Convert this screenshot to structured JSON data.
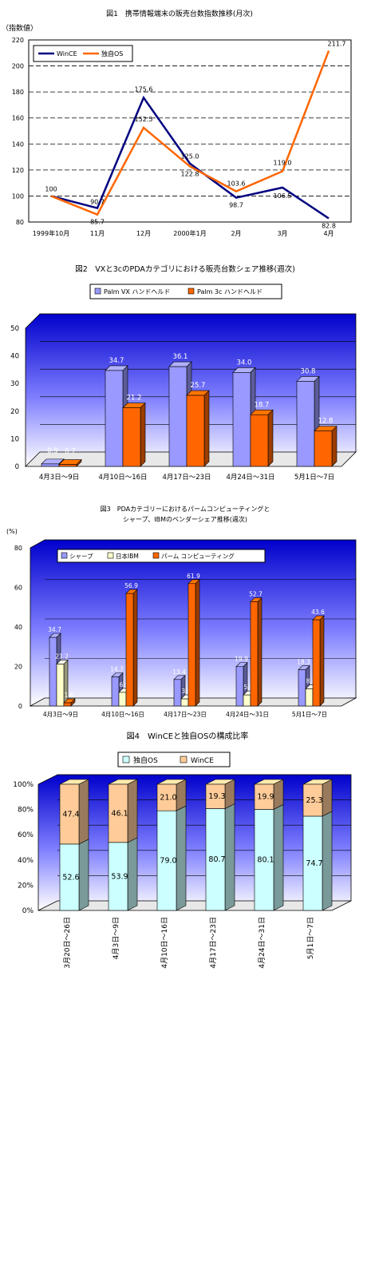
{
  "chart_data": [
    {
      "type": "line",
      "title": "図1　携帯情報端末の販売台数指数推移(月次)",
      "ylabel": "（指数値）",
      "categories": [
        "1999年10月",
        "11月",
        "12月",
        "2000年1月",
        "2月",
        "3月",
        "4月"
      ],
      "series": [
        {
          "name": "WinCE",
          "color": "#000080",
          "values": [
            100,
            90.7,
            175.6,
            125.0,
            98.7,
            106.5,
            82.8
          ]
        },
        {
          "name": "独自OS",
          "color": "#ff6600",
          "values": [
            100,
            85.7,
            152.5,
            122.8,
            103.6,
            119.0,
            211.7
          ]
        }
      ],
      "data_labels": [
        "100",
        "90.7",
        "175.6",
        "125.0",
        "98.7",
        "106.5",
        "82.8",
        "85.7",
        "152.5",
        "122.8",
        "103.6",
        "119.0",
        "211.7"
      ],
      "ylim": [
        80,
        220
      ],
      "yticks": [
        "80",
        "100",
        "120",
        "140",
        "160",
        "180",
        "200",
        "220"
      ],
      "grid": true,
      "legend": "top-left"
    },
    {
      "type": "bar",
      "title": "図2　VXと3cのPDAカテゴリにおける販売台数シェア推移(週次)",
      "categories": [
        "4月3日～9日",
        "4月10日～16日",
        "4月17日～23日",
        "4月24日～31日",
        "5月1日～7日"
      ],
      "series": [
        {
          "name": "Palm VX ハンドヘルド",
          "color": "#9999ff",
          "values": [
            0.9,
            34.7,
            36.1,
            34.0,
            30.8
          ]
        },
        {
          "name": "Palm 3c ハンドヘルド",
          "color": "#ff6600",
          "values": [
            0.7,
            21.2,
            25.7,
            18.7,
            12.8
          ]
        }
      ],
      "data_labels": [
        [
          "0.9",
          "34.7",
          "36.1",
          "34.0",
          "30.8"
        ],
        [
          "0.7",
          "21.2",
          "25.7",
          "18.7",
          "12.8"
        ]
      ],
      "ylim": [
        0,
        50
      ],
      "yticks": [
        "0",
        "10",
        "20",
        "30",
        "40",
        "50"
      ],
      "grid": true,
      "legend": "top"
    },
    {
      "type": "bar",
      "title": "図3　PDAカテゴリーにおけるパームコンピューティングと",
      "subtitle": "シャープ、IBMのベンダーシェア推移(週次)",
      "ylabel": "(%)",
      "categories": [
        "4月3日～9日",
        "4月10日～16日",
        "4月17日～23日",
        "4月24日～31日",
        "5月1日～7日"
      ],
      "series": [
        {
          "name": "シャープ",
          "color": "#9999ff",
          "values": [
            34.7,
            14.7,
            13.4,
            19.9,
            18.3
          ]
        },
        {
          "name": "日本IBM",
          "color": "#ffffcc",
          "values": [
            21.2,
            6.9,
            3.6,
            5.6,
            8.6
          ]
        },
        {
          "name": "パーム コンピューティング",
          "color": "#ff6600",
          "values": [
            1.6,
            56.9,
            61.9,
            52.7,
            43.6
          ]
        }
      ],
      "data_labels": [
        [
          "34.7",
          "14.7",
          "13.4",
          "19.9",
          "18.3"
        ],
        [
          "21.2",
          "6.9",
          "3.6",
          "5.6",
          "8.6"
        ],
        [
          "1.6",
          "56.9",
          "61.9",
          "52.7",
          "43.6"
        ]
      ],
      "ylim": [
        0,
        80
      ],
      "yticks": [
        "0",
        "20",
        "40",
        "60",
        "80"
      ],
      "grid": true,
      "legend": "top"
    },
    {
      "type": "bar",
      "stacked": true,
      "title": "図4　WinCEと独自OSの構成比率",
      "categories": [
        "3月20日～26日",
        "4月3日～9日",
        "4月10日～16日",
        "4月17日～23日",
        "4月24日～31日",
        "5月1日～7日"
      ],
      "series": [
        {
          "name": "独自OS",
          "color": "#ccffff",
          "values": [
            52.6,
            53.9,
            79.0,
            80.7,
            80.1,
            74.7
          ]
        },
        {
          "name": "WinCE",
          "color": "#ffcc99",
          "values": [
            47.4,
            46.1,
            21.0,
            19.3,
            19.9,
            25.3
          ]
        }
      ],
      "data_labels": [
        [
          "52.6",
          "53.9",
          "79.0",
          "80.7",
          "80.1",
          "74.7"
        ],
        [
          "47.4",
          "46.1",
          "21.0",
          "19.3",
          "19.9",
          "25.3"
        ]
      ],
      "ylim": [
        0,
        100
      ],
      "yticks": [
        "0%",
        "20%",
        "40%",
        "60%",
        "80%",
        "100%"
      ],
      "grid": true,
      "legend": "top"
    }
  ]
}
